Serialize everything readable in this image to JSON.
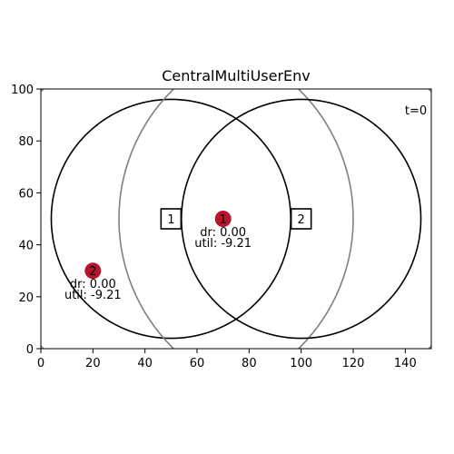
{
  "chart_data": {
    "type": "scatter",
    "title": "CentralMultiUserEnv",
    "xlabel": "",
    "ylabel": "",
    "xlim": [
      0,
      150
    ],
    "ylim": [
      0,
      100
    ],
    "xticks": [
      0,
      20,
      40,
      60,
      80,
      100,
      120,
      140
    ],
    "yticks": [
      0,
      20,
      40,
      60,
      80,
      100
    ],
    "timestep": "t=0",
    "base_stations": [
      {
        "id": "1",
        "x": 50,
        "y": 50,
        "range_radius": 46,
        "sensing_radius": 70
      },
      {
        "id": "2",
        "x": 100,
        "y": 50,
        "range_radius": 46,
        "sensing_radius": 70
      }
    ],
    "users": [
      {
        "id": "1",
        "x": 70,
        "y": 50,
        "dr": "dr: 0.00",
        "util": "util: -9.21"
      },
      {
        "id": "2",
        "x": 20,
        "y": 30,
        "dr": "dr: 0.00",
        "util": "util: -9.21"
      }
    ],
    "colors": {
      "user_fill": "#b5152b",
      "range_circle": "#000000",
      "sensing_circle": "#808080"
    }
  }
}
